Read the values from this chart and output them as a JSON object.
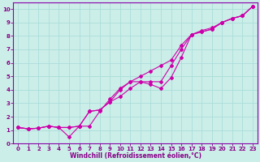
{
  "background_color": "#cceee8",
  "plot_bg_color": "#cceee8",
  "grid_color": "#aaddda",
  "line_color": "#cc00aa",
  "xlabel": "Windchill (Refroidissement éolien,°C)",
  "xlabel_color": "#880088",
  "tick_color": "#880088",
  "xlim": [
    -0.5,
    23.5
  ],
  "ylim": [
    0,
    10.5
  ],
  "xticks": [
    0,
    1,
    2,
    3,
    4,
    5,
    6,
    7,
    8,
    9,
    10,
    11,
    12,
    13,
    14,
    15,
    16,
    17,
    18,
    19,
    20,
    21,
    22,
    23
  ],
  "yticks": [
    0,
    1,
    2,
    3,
    4,
    5,
    6,
    7,
    8,
    9,
    10
  ],
  "line1_x": [
    0,
    1,
    2,
    3,
    4,
    5,
    6,
    7,
    8,
    9,
    10,
    11,
    12,
    13,
    14,
    15,
    16,
    17,
    18,
    19,
    20,
    21,
    22,
    23
  ],
  "line1_y": [
    1.2,
    1.1,
    1.15,
    1.3,
    1.2,
    1.2,
    1.3,
    2.4,
    2.5,
    3.1,
    3.5,
    4.1,
    4.6,
    4.6,
    4.6,
    5.8,
    7.0,
    8.1,
    8.3,
    8.5,
    9.0,
    9.3,
    9.5,
    10.2
  ],
  "line2_x": [
    0,
    1,
    2,
    3,
    4,
    5,
    6,
    7,
    8,
    9,
    10,
    11,
    12,
    13,
    14,
    15,
    16,
    17,
    18,
    19,
    20,
    21,
    22,
    23
  ],
  "line2_y": [
    1.2,
    1.1,
    1.15,
    1.3,
    1.2,
    0.5,
    1.3,
    1.3,
    2.4,
    3.3,
    4.1,
    4.6,
    4.6,
    4.4,
    4.1,
    4.9,
    6.4,
    8.1,
    8.3,
    8.5,
    9.0,
    9.3,
    9.5,
    10.2
  ],
  "line3_x": [
    0,
    1,
    2,
    3,
    4,
    5,
    6,
    7,
    8,
    9,
    10,
    11,
    12,
    13,
    14,
    15,
    16,
    17,
    18,
    19,
    20,
    21,
    22,
    23
  ],
  "line3_y": [
    1.2,
    1.1,
    1.15,
    1.3,
    1.2,
    1.2,
    1.3,
    2.4,
    2.5,
    3.1,
    4.0,
    4.6,
    5.0,
    5.4,
    5.8,
    6.2,
    7.3,
    8.1,
    8.4,
    8.6,
    9.0,
    9.3,
    9.5,
    10.2
  ],
  "border_color": "#8800aa",
  "tick_fontsize": 5.0,
  "xlabel_fontsize": 5.5
}
